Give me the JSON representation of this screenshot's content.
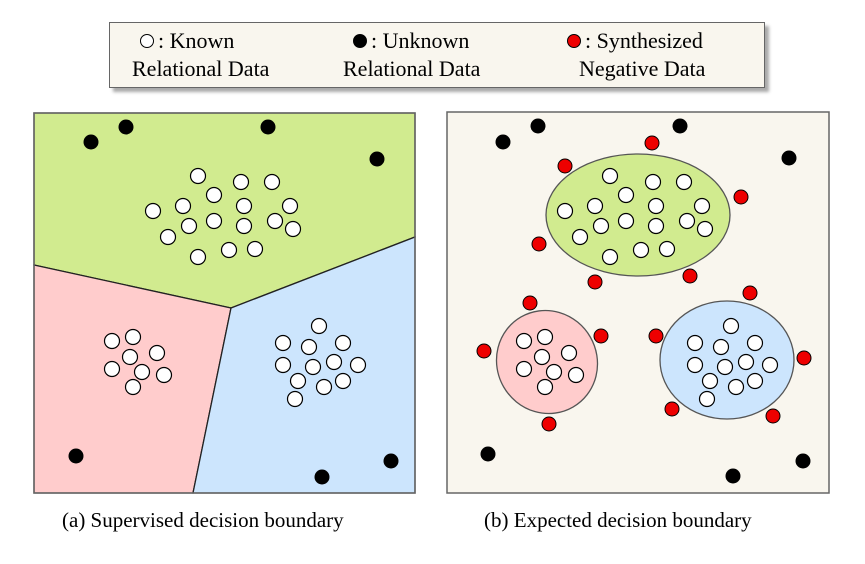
{
  "legend": {
    "items": [
      {
        "line1": ": Known",
        "line2": "Relational Data",
        "symbol": "white-circle",
        "fill": "#ffffff"
      },
      {
        "line1": ": Unknown",
        "line2": "Relational Data",
        "symbol": "black-circle",
        "fill": "#000000"
      },
      {
        "line1": ": Synthesized",
        "line2": "Negative Data",
        "symbol": "red-circle",
        "fill": "#ee0000"
      }
    ]
  },
  "panels": [
    {
      "caption": "(a)  Supervised decision boundary",
      "region_colors": {
        "green": "#d1eb8f",
        "pink": "#ffcccc",
        "blue": "#cce5fd"
      }
    },
    {
      "caption": "(b)  Expected decision boundary",
      "background": "#f9f6ee",
      "region_colors": {
        "green": "#d1eb8f",
        "pink": "#ffcccc",
        "blue": "#cce5fd"
      }
    }
  ]
}
